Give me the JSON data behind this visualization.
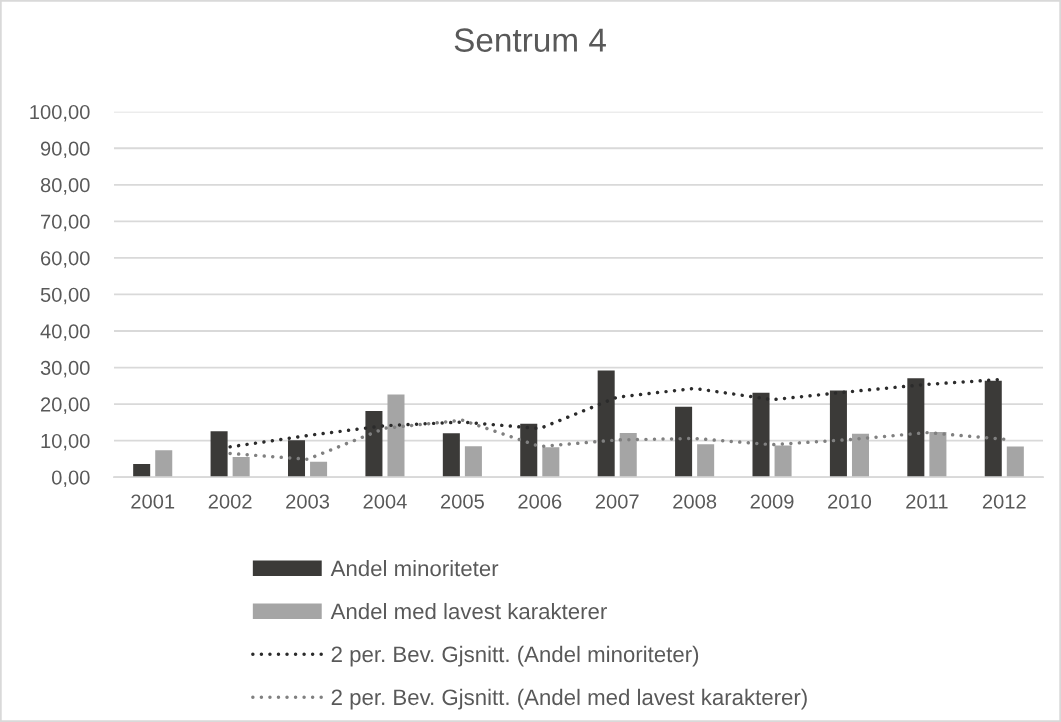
{
  "chart_data": {
    "type": "bar",
    "title": "Sentrum 4",
    "categories": [
      "2001",
      "2002",
      "2003",
      "2004",
      "2005",
      "2006",
      "2007",
      "2008",
      "2009",
      "2010",
      "2011",
      "2012"
    ],
    "series": [
      {
        "name": "Andel minoriteter",
        "color": "#3b3a38",
        "values": [
          3.6,
          12.6,
          10.1,
          18.1,
          12.0,
          14.6,
          29.2,
          19.3,
          23.1,
          23.7,
          27.1,
          26.4
        ]
      },
      {
        "name": "Andel med lavest karakterer",
        "color": "#a5a5a5",
        "values": [
          7.4,
          5.5,
          4.2,
          22.6,
          8.5,
          8.2,
          12.1,
          9.0,
          8.7,
          11.9,
          12.4,
          8.4
        ]
      },
      {
        "name": "2 per. Bev. Gjsnitt. (Andel minoriteter)",
        "type": "line",
        "color": "#2b2b2b",
        "values": [
          null,
          8.3,
          11.4,
          14.1,
          15.1,
          13.3,
          21.9,
          24.3,
          21.2,
          23.4,
          25.4,
          26.8
        ]
      },
      {
        "name": "2 per. Bev. Gjsnitt. (Andel med lavest karakterer)",
        "type": "line",
        "color": "#808080",
        "values": [
          null,
          6.5,
          4.9,
          13.4,
          15.6,
          8.4,
          10.2,
          10.6,
          8.9,
          10.3,
          12.2,
          10.4
        ]
      }
    ],
    "ylim": [
      0,
      100
    ],
    "yticks": [
      {
        "value": 0,
        "label": "0,00"
      },
      {
        "value": 10,
        "label": "10,00"
      },
      {
        "value": 20,
        "label": "20,00"
      },
      {
        "value": 30,
        "label": "30,00"
      },
      {
        "value": 40,
        "label": "40,00"
      },
      {
        "value": 50,
        "label": "50,00"
      },
      {
        "value": 60,
        "label": "60,00"
      },
      {
        "value": 70,
        "label": "70,00"
      },
      {
        "value": 80,
        "label": "80,00"
      },
      {
        "value": 90,
        "label": "90,00"
      },
      {
        "value": 100,
        "label": "100,00"
      }
    ],
    "grid": "y",
    "legend": "bottom",
    "line_style": "dotted"
  }
}
